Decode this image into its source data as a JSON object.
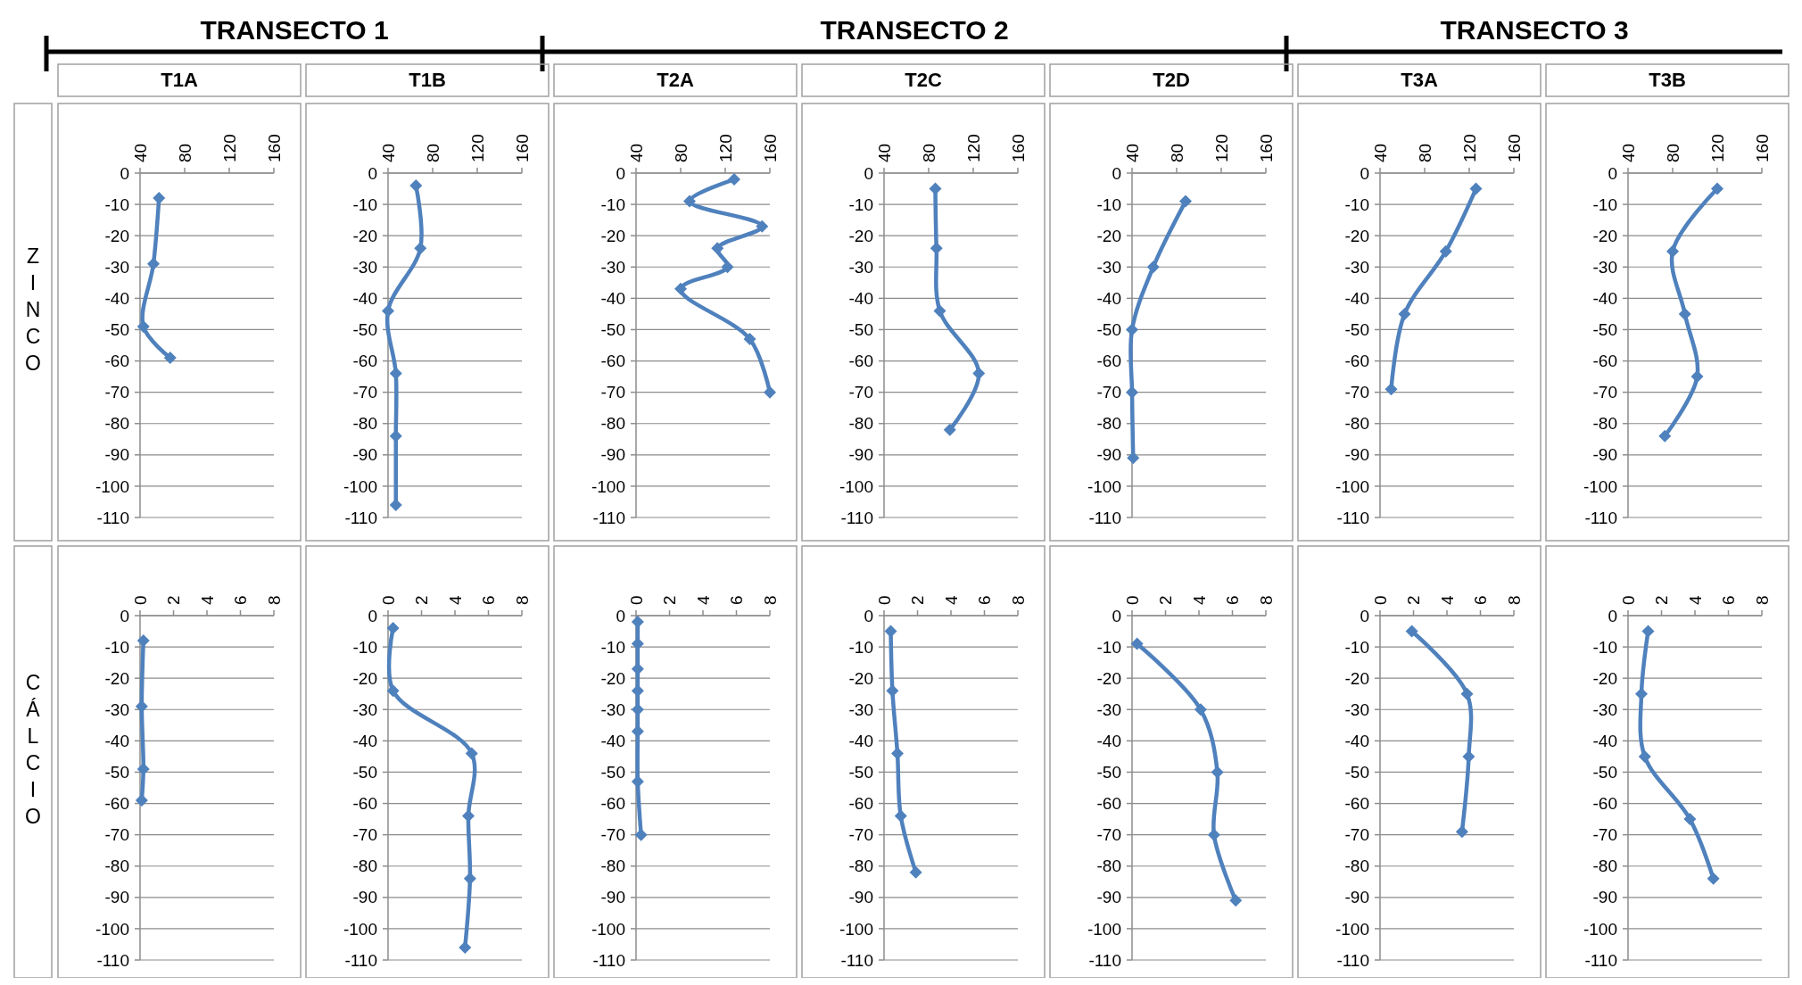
{
  "chart_data": [
    {
      "type": "line",
      "title": "T1A",
      "annotations": [
        "TRANSECTO 1",
        "ZINCO"
      ],
      "xlim": [
        40,
        160
      ],
      "xticks": [
        40,
        80,
        120,
        160
      ],
      "ylim": [
        -110,
        0
      ],
      "yticks": [
        0,
        -10,
        -20,
        -30,
        -40,
        -50,
        -60,
        -70,
        -80,
        -90,
        -100,
        -110
      ],
      "grid": "y",
      "marker": "diamond",
      "line_style": "solid",
      "series": [
        {
          "color": "#4f81bd",
          "x": [
            57,
            52,
            43,
            67
          ],
          "values": [
            -8,
            -29,
            -49,
            -59
          ]
        }
      ]
    },
    {
      "type": "line",
      "title": "T1B",
      "xlim": [
        40,
        160
      ],
      "xticks": [
        40,
        80,
        120,
        160
      ],
      "ylim": [
        -110,
        0
      ],
      "yticks": [
        0,
        -10,
        -20,
        -30,
        -40,
        -50,
        -60,
        -70,
        -80,
        -90,
        -100,
        -110
      ],
      "grid": "y",
      "marker": "diamond",
      "line_style": "solid",
      "series": [
        {
          "color": "#4f81bd",
          "x": [
            65,
            69,
            40,
            47,
            47,
            47
          ],
          "values": [
            -4,
            -24,
            -44,
            -64,
            -84,
            -106
          ]
        }
      ]
    },
    {
      "type": "line",
      "title": "T2A",
      "annotations": [
        "TRANSECTO 2"
      ],
      "xlim": [
        40,
        160
      ],
      "xticks": [
        40,
        80,
        120,
        160
      ],
      "ylim": [
        -110,
        0
      ],
      "yticks": [
        0,
        -10,
        -20,
        -30,
        -40,
        -50,
        -60,
        -70,
        -80,
        -90,
        -100,
        -110
      ],
      "grid": "y",
      "marker": "diamond",
      "line_style": "solid",
      "series": [
        {
          "color": "#4f81bd",
          "x": [
            128,
            88,
            153,
            113,
            122,
            80,
            142,
            160
          ],
          "values": [
            -2,
            -9,
            -17,
            -24,
            -30,
            -37,
            -53,
            -70
          ]
        }
      ]
    },
    {
      "type": "line",
      "title": "T2C",
      "xlim": [
        40,
        160
      ],
      "xticks": [
        40,
        80,
        120,
        160
      ],
      "ylim": [
        -110,
        0
      ],
      "yticks": [
        0,
        -10,
        -20,
        -30,
        -40,
        -50,
        -60,
        -70,
        -80,
        -90,
        -100,
        -110
      ],
      "grid": "y",
      "marker": "diamond",
      "line_style": "solid",
      "series": [
        {
          "color": "#4f81bd",
          "x": [
            86,
            87,
            90,
            125,
            99
          ],
          "values": [
            -5,
            -24,
            -44,
            -64,
            -82
          ]
        }
      ]
    },
    {
      "type": "line",
      "title": "T2D",
      "xlim": [
        40,
        160
      ],
      "xticks": [
        40,
        80,
        120,
        160
      ],
      "ylim": [
        -110,
        0
      ],
      "yticks": [
        0,
        -10,
        -20,
        -30,
        -40,
        -50,
        -60,
        -70,
        -80,
        -90,
        -100,
        -110
      ],
      "grid": "y",
      "marker": "diamond",
      "line_style": "solid",
      "series": [
        {
          "color": "#4f81bd",
          "x": [
            88,
            59,
            40,
            40,
            41
          ],
          "values": [
            -9,
            -30,
            -50,
            -70,
            -91
          ]
        }
      ]
    },
    {
      "type": "line",
      "title": "T3A",
      "annotations": [
        "TRANSECTO 3"
      ],
      "xlim": [
        40,
        160
      ],
      "xticks": [
        40,
        80,
        120,
        160
      ],
      "ylim": [
        -110,
        0
      ],
      "yticks": [
        0,
        -10,
        -20,
        -30,
        -40,
        -50,
        -60,
        -70,
        -80,
        -90,
        -100,
        -110
      ],
      "grid": "y",
      "marker": "diamond",
      "line_style": "solid",
      "series": [
        {
          "color": "#4f81bd",
          "x": [
            126,
            99,
            62,
            50
          ],
          "values": [
            -5,
            -25,
            -45,
            -69
          ]
        }
      ]
    },
    {
      "type": "line",
      "title": "T3B",
      "xlim": [
        40,
        160
      ],
      "xticks": [
        40,
        80,
        120,
        160
      ],
      "ylim": [
        -110,
        0
      ],
      "yticks": [
        0,
        -10,
        -20,
        -30,
        -40,
        -50,
        -60,
        -70,
        -80,
        -90,
        -100,
        -110
      ],
      "grid": "y",
      "marker": "diamond",
      "line_style": "solid",
      "series": [
        {
          "color": "#4f81bd",
          "x": [
            120,
            80,
            91,
            102,
            73
          ],
          "values": [
            -5,
            -25,
            -45,
            -65,
            -84
          ]
        }
      ]
    },
    {
      "type": "line",
      "annotations": [
        "CÁLCIO"
      ],
      "xlim": [
        0,
        8
      ],
      "xticks": [
        0,
        2,
        4,
        6,
        8
      ],
      "ylim": [
        -110,
        0
      ],
      "yticks": [
        0,
        -10,
        -20,
        -30,
        -40,
        -50,
        -60,
        -70,
        -80,
        -90,
        -100,
        -110
      ],
      "grid": "y",
      "marker": "diamond",
      "line_style": "solid",
      "series": [
        {
          "color": "#4f81bd",
          "x": [
            0.2,
            0.1,
            0.2,
            0.1
          ],
          "values": [
            -8,
            -29,
            -49,
            -59
          ]
        }
      ]
    },
    {
      "type": "line",
      "xlim": [
        0,
        8
      ],
      "xticks": [
        0,
        2,
        4,
        6,
        8
      ],
      "ylim": [
        -110,
        0
      ],
      "yticks": [
        0,
        -10,
        -20,
        -30,
        -40,
        -50,
        -60,
        -70,
        -80,
        -90,
        -100,
        -110
      ],
      "grid": "y",
      "marker": "diamond",
      "line_style": "solid",
      "series": [
        {
          "color": "#4f81bd",
          "x": [
            0.3,
            0.3,
            5.0,
            4.8,
            4.9,
            4.6
          ],
          "values": [
            -4,
            -24,
            -44,
            -64,
            -84,
            -106
          ]
        }
      ]
    },
    {
      "type": "line",
      "xlim": [
        0,
        8
      ],
      "xticks": [
        0,
        2,
        4,
        6,
        8
      ],
      "ylim": [
        -110,
        0
      ],
      "yticks": [
        0,
        -10,
        -20,
        -30,
        -40,
        -50,
        -60,
        -70,
        -80,
        -90,
        -100,
        -110
      ],
      "grid": "y",
      "marker": "diamond",
      "line_style": "solid",
      "series": [
        {
          "color": "#4f81bd",
          "x": [
            0.1,
            0.1,
            0.1,
            0.1,
            0.1,
            0.1,
            0.1,
            0.3
          ],
          "values": [
            -2,
            -9,
            -17,
            -24,
            -30,
            -37,
            -53,
            -70
          ]
        }
      ]
    },
    {
      "type": "line",
      "xlim": [
        0,
        8
      ],
      "xticks": [
        0,
        2,
        4,
        6,
        8
      ],
      "ylim": [
        -110,
        0
      ],
      "yticks": [
        0,
        -10,
        -20,
        -30,
        -40,
        -50,
        -60,
        -70,
        -80,
        -90,
        -100,
        -110
      ],
      "grid": "y",
      "marker": "diamond",
      "line_style": "solid",
      "series": [
        {
          "color": "#4f81bd",
          "x": [
            0.4,
            0.5,
            0.8,
            1.0,
            1.9
          ],
          "values": [
            -5,
            -24,
            -44,
            -64,
            -82
          ]
        }
      ]
    },
    {
      "type": "line",
      "xlim": [
        0,
        8
      ],
      "xticks": [
        0,
        2,
        4,
        6,
        8
      ],
      "ylim": [
        -110,
        0
      ],
      "yticks": [
        0,
        -10,
        -20,
        -30,
        -40,
        -50,
        -60,
        -70,
        -80,
        -90,
        -100,
        -110
      ],
      "grid": "y",
      "marker": "diamond",
      "line_style": "solid",
      "series": [
        {
          "color": "#4f81bd",
          "x": [
            0.3,
            4.1,
            5.1,
            4.9,
            6.2
          ],
          "values": [
            -9,
            -30,
            -50,
            -70,
            -91
          ]
        }
      ]
    },
    {
      "type": "line",
      "xlim": [
        0,
        8
      ],
      "xticks": [
        0,
        2,
        4,
        6,
        8
      ],
      "ylim": [
        -110,
        0
      ],
      "yticks": [
        0,
        -10,
        -20,
        -30,
        -40,
        -50,
        -60,
        -70,
        -80,
        -90,
        -100,
        -110
      ],
      "grid": "y",
      "marker": "diamond",
      "line_style": "solid",
      "series": [
        {
          "color": "#4f81bd",
          "x": [
            1.9,
            5.2,
            5.3,
            4.9
          ],
          "values": [
            -5,
            -25,
            -45,
            -69
          ]
        }
      ]
    },
    {
      "type": "line",
      "xlim": [
        0,
        8
      ],
      "xticks": [
        0,
        2,
        4,
        6,
        8
      ],
      "ylim": [
        -110,
        0
      ],
      "yticks": [
        0,
        -10,
        -20,
        -30,
        -40,
        -50,
        -60,
        -70,
        -80,
        -90,
        -100,
        -110
      ],
      "grid": "y",
      "marker": "diamond",
      "line_style": "solid",
      "series": [
        {
          "color": "#4f81bd",
          "x": [
            1.2,
            0.8,
            1.0,
            3.7,
            5.1
          ],
          "values": [
            -5,
            -25,
            -45,
            -65,
            -84
          ]
        }
      ]
    }
  ]
}
